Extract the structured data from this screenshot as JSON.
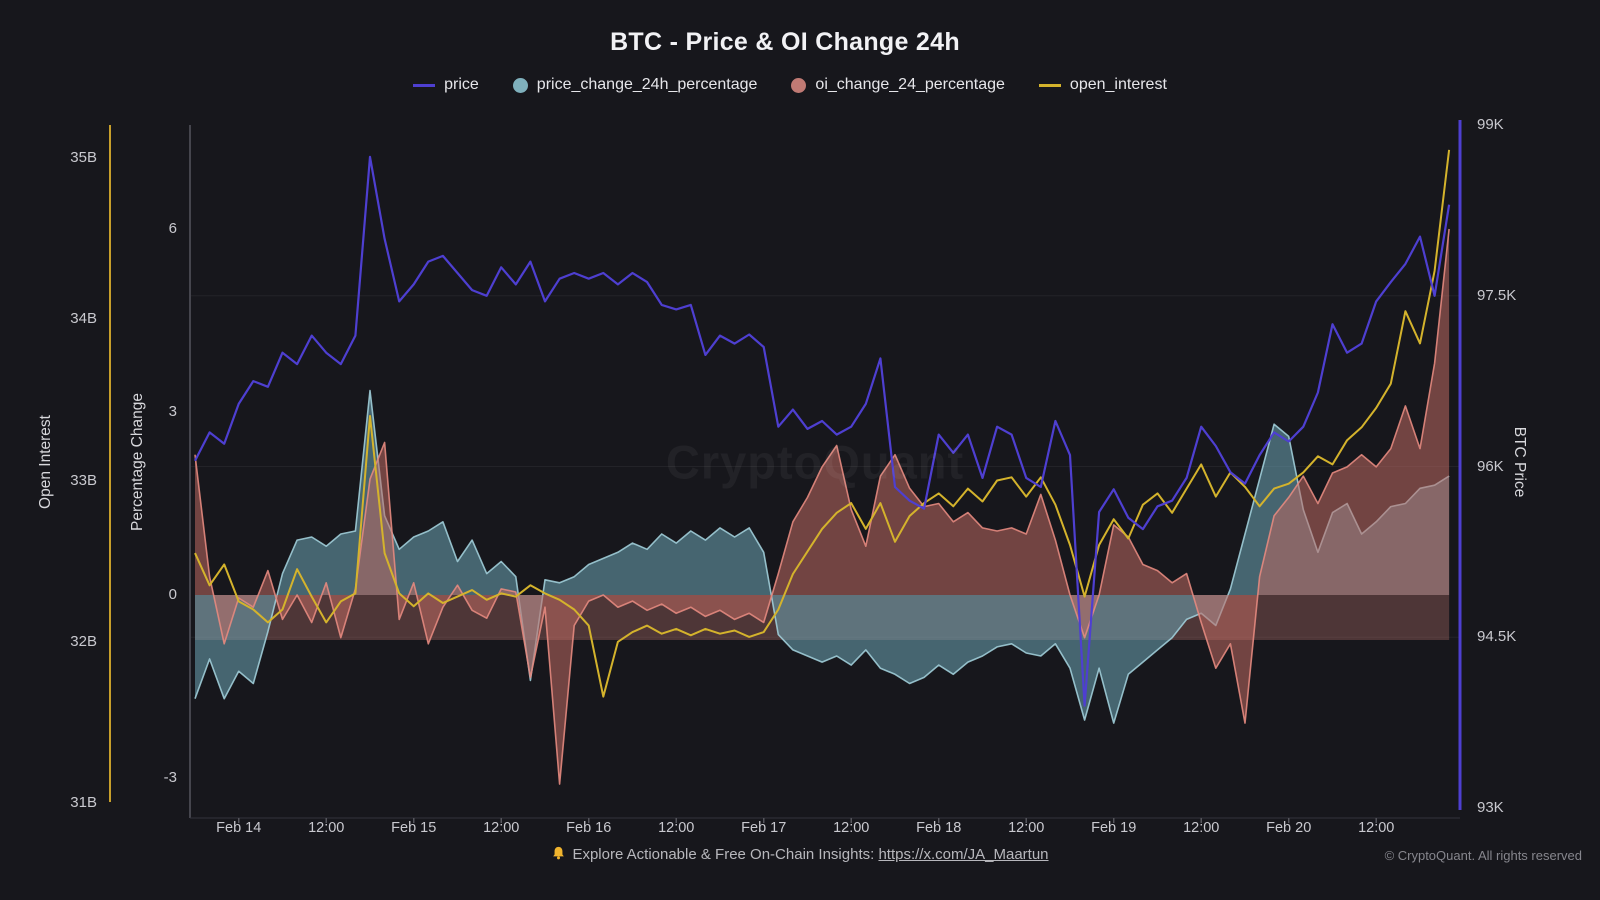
{
  "title": "BTC - Price & OI Change 24h",
  "watermark": "CryptoQuant",
  "legend": [
    {
      "label": "price",
      "swatch": "line",
      "color": "#4e3fd1"
    },
    {
      "label": "price_change_24h_percentage",
      "swatch": "dot",
      "color": "#7fb0bc"
    },
    {
      "label": "oi_change_24_percentage",
      "swatch": "dot",
      "color": "#c07a74"
    },
    {
      "label": "open_interest",
      "swatch": "line",
      "color": "#d4b32c"
    }
  ],
  "axes": {
    "left_outer": {
      "title": "Open Interest",
      "ticks": [
        "35B",
        "34B",
        "33B",
        "32B",
        "31B"
      ]
    },
    "left_inner": {
      "title": "Percentage Change",
      "ticks": [
        "6",
        "3",
        "0",
        "-3"
      ]
    },
    "right": {
      "title": "BTC Price",
      "ticks": [
        "99K",
        "97.5K",
        "96K",
        "94.5K",
        "93K"
      ]
    },
    "x": {
      "ticks": [
        "Feb 14",
        "12:00",
        "Feb 15",
        "12:00",
        "Feb 16",
        "12:00",
        "Feb 17",
        "12:00",
        "Feb 18",
        "12:00",
        "Feb 19",
        "12:00",
        "Feb 20",
        "12:00"
      ]
    }
  },
  "footer": {
    "promo_prefix": "Explore Actionable & Free On-Chain Insights: ",
    "promo_link": "https://x.com/JA_Maartun",
    "copyright": "© CryptoQuant. All rights reserved"
  },
  "chart_data": {
    "type": "line+area",
    "title": "BTC - Price & OI Change 24h",
    "x_start": "Feb 13 18:00",
    "x_step_hours": 2,
    "grid": "horizontal-faint",
    "legend_position": "top",
    "axis_ranges": {
      "btc_price_k": [
        93,
        99
      ],
      "open_interest_b": [
        31,
        35
      ],
      "percent": [
        -3.4,
        6.6
      ]
    },
    "series": [
      {
        "name": "price",
        "style": "line",
        "axis": "btc_price_k",
        "color": "#4e3fd1",
        "values": [
          96.05,
          96.3,
          96.2,
          96.55,
          96.75,
          96.7,
          97.0,
          96.9,
          97.15,
          97.0,
          96.9,
          97.15,
          98.72,
          98.0,
          97.45,
          97.6,
          97.8,
          97.85,
          97.7,
          97.55,
          97.5,
          97.75,
          97.6,
          97.8,
          97.45,
          97.65,
          97.7,
          97.65,
          97.7,
          97.6,
          97.7,
          97.62,
          97.42,
          97.38,
          97.42,
          96.98,
          97.15,
          97.08,
          97.16,
          97.05,
          96.35,
          96.5,
          96.33,
          96.4,
          96.28,
          96.35,
          96.55,
          96.95,
          95.82,
          95.7,
          95.63,
          96.28,
          96.12,
          96.28,
          95.9,
          96.35,
          96.28,
          95.9,
          95.82,
          96.4,
          96.1,
          93.9,
          95.6,
          95.8,
          95.55,
          95.45,
          95.65,
          95.7,
          95.9,
          96.35,
          96.18,
          95.95,
          95.85,
          96.1,
          96.3,
          96.22,
          96.35,
          96.65,
          97.25,
          97.0,
          97.08,
          97.45,
          97.62,
          97.78,
          98.02,
          97.5,
          98.3
        ]
      },
      {
        "name": "price_change_24h_percentage",
        "style": "area",
        "axis": "percent",
        "color": "#6ea6b6",
        "values": [
          -1.7,
          -1.05,
          -1.7,
          -1.25,
          -1.45,
          -0.6,
          0.35,
          0.9,
          0.95,
          0.8,
          1.0,
          1.05,
          3.35,
          1.3,
          0.75,
          0.95,
          1.05,
          1.2,
          0.55,
          0.9,
          0.35,
          0.55,
          0.3,
          -1.4,
          0.25,
          0.2,
          0.3,
          0.5,
          0.6,
          0.7,
          0.85,
          0.75,
          1.0,
          0.85,
          1.05,
          0.9,
          1.1,
          0.95,
          1.1,
          0.7,
          -0.65,
          -0.9,
          -1.0,
          -1.1,
          -1.0,
          -1.15,
          -0.9,
          -1.2,
          -1.3,
          -1.45,
          -1.35,
          -1.15,
          -1.3,
          -1.1,
          -1.0,
          -0.85,
          -0.8,
          -0.95,
          -1.0,
          -0.8,
          -1.2,
          -2.05,
          -1.2,
          -2.1,
          -1.3,
          -1.1,
          -0.9,
          -0.7,
          -0.4,
          -0.3,
          -0.5,
          0.1,
          1.0,
          1.9,
          2.8,
          2.6,
          1.4,
          0.7,
          1.35,
          1.5,
          1.0,
          1.2,
          1.45,
          1.5,
          1.75,
          1.8,
          1.95
        ]
      },
      {
        "name": "oi_change_24_percentage",
        "style": "area",
        "axis": "percent",
        "color": "#be6962",
        "values": [
          2.3,
          0.3,
          -0.8,
          -0.05,
          -0.2,
          0.4,
          -0.4,
          0.0,
          -0.45,
          0.2,
          -0.7,
          0.1,
          1.9,
          2.5,
          -0.4,
          0.2,
          -0.8,
          -0.2,
          0.16,
          -0.25,
          -0.38,
          0.1,
          0.05,
          -1.35,
          -0.2,
          -3.1,
          -0.5,
          -0.1,
          0.0,
          -0.2,
          -0.1,
          -0.25,
          -0.15,
          -0.3,
          -0.2,
          -0.35,
          -0.25,
          -0.4,
          -0.3,
          -0.45,
          0.35,
          1.2,
          1.6,
          2.1,
          2.45,
          1.4,
          0.8,
          1.95,
          2.3,
          1.75,
          1.45,
          1.5,
          1.2,
          1.35,
          1.1,
          1.05,
          1.1,
          1.0,
          1.65,
          0.9,
          0.0,
          -0.7,
          0.0,
          1.15,
          0.95,
          0.5,
          0.4,
          0.2,
          0.35,
          -0.45,
          -1.2,
          -0.8,
          -2.1,
          0.3,
          1.3,
          1.6,
          1.95,
          1.5,
          2.0,
          2.1,
          2.3,
          2.1,
          2.4,
          3.1,
          2.4,
          3.8,
          6.0
        ]
      },
      {
        "name": "open_interest",
        "style": "line",
        "axis": "open_interest_b",
        "color": "#d4b32c",
        "values": [
          32.55,
          32.35,
          32.48,
          32.25,
          32.2,
          32.12,
          32.2,
          32.45,
          32.28,
          32.12,
          32.25,
          32.3,
          33.4,
          32.55,
          32.3,
          32.22,
          32.3,
          32.24,
          32.28,
          32.32,
          32.26,
          32.3,
          32.28,
          32.35,
          32.3,
          32.26,
          32.2,
          32.1,
          31.66,
          32.0,
          32.06,
          32.1,
          32.05,
          32.08,
          32.04,
          32.08,
          32.05,
          32.07,
          32.03,
          32.06,
          32.2,
          32.42,
          32.56,
          32.7,
          32.8,
          32.86,
          32.7,
          32.86,
          32.62,
          32.78,
          32.86,
          32.92,
          32.84,
          32.95,
          32.87,
          33.0,
          33.02,
          32.9,
          33.02,
          32.85,
          32.6,
          32.28,
          32.6,
          32.76,
          32.64,
          32.85,
          32.92,
          32.8,
          32.95,
          33.1,
          32.9,
          33.05,
          32.96,
          32.84,
          32.95,
          32.98,
          33.05,
          33.15,
          33.1,
          33.25,
          33.33,
          33.45,
          33.6,
          34.05,
          33.85,
          34.3,
          35.05
        ]
      }
    ]
  }
}
